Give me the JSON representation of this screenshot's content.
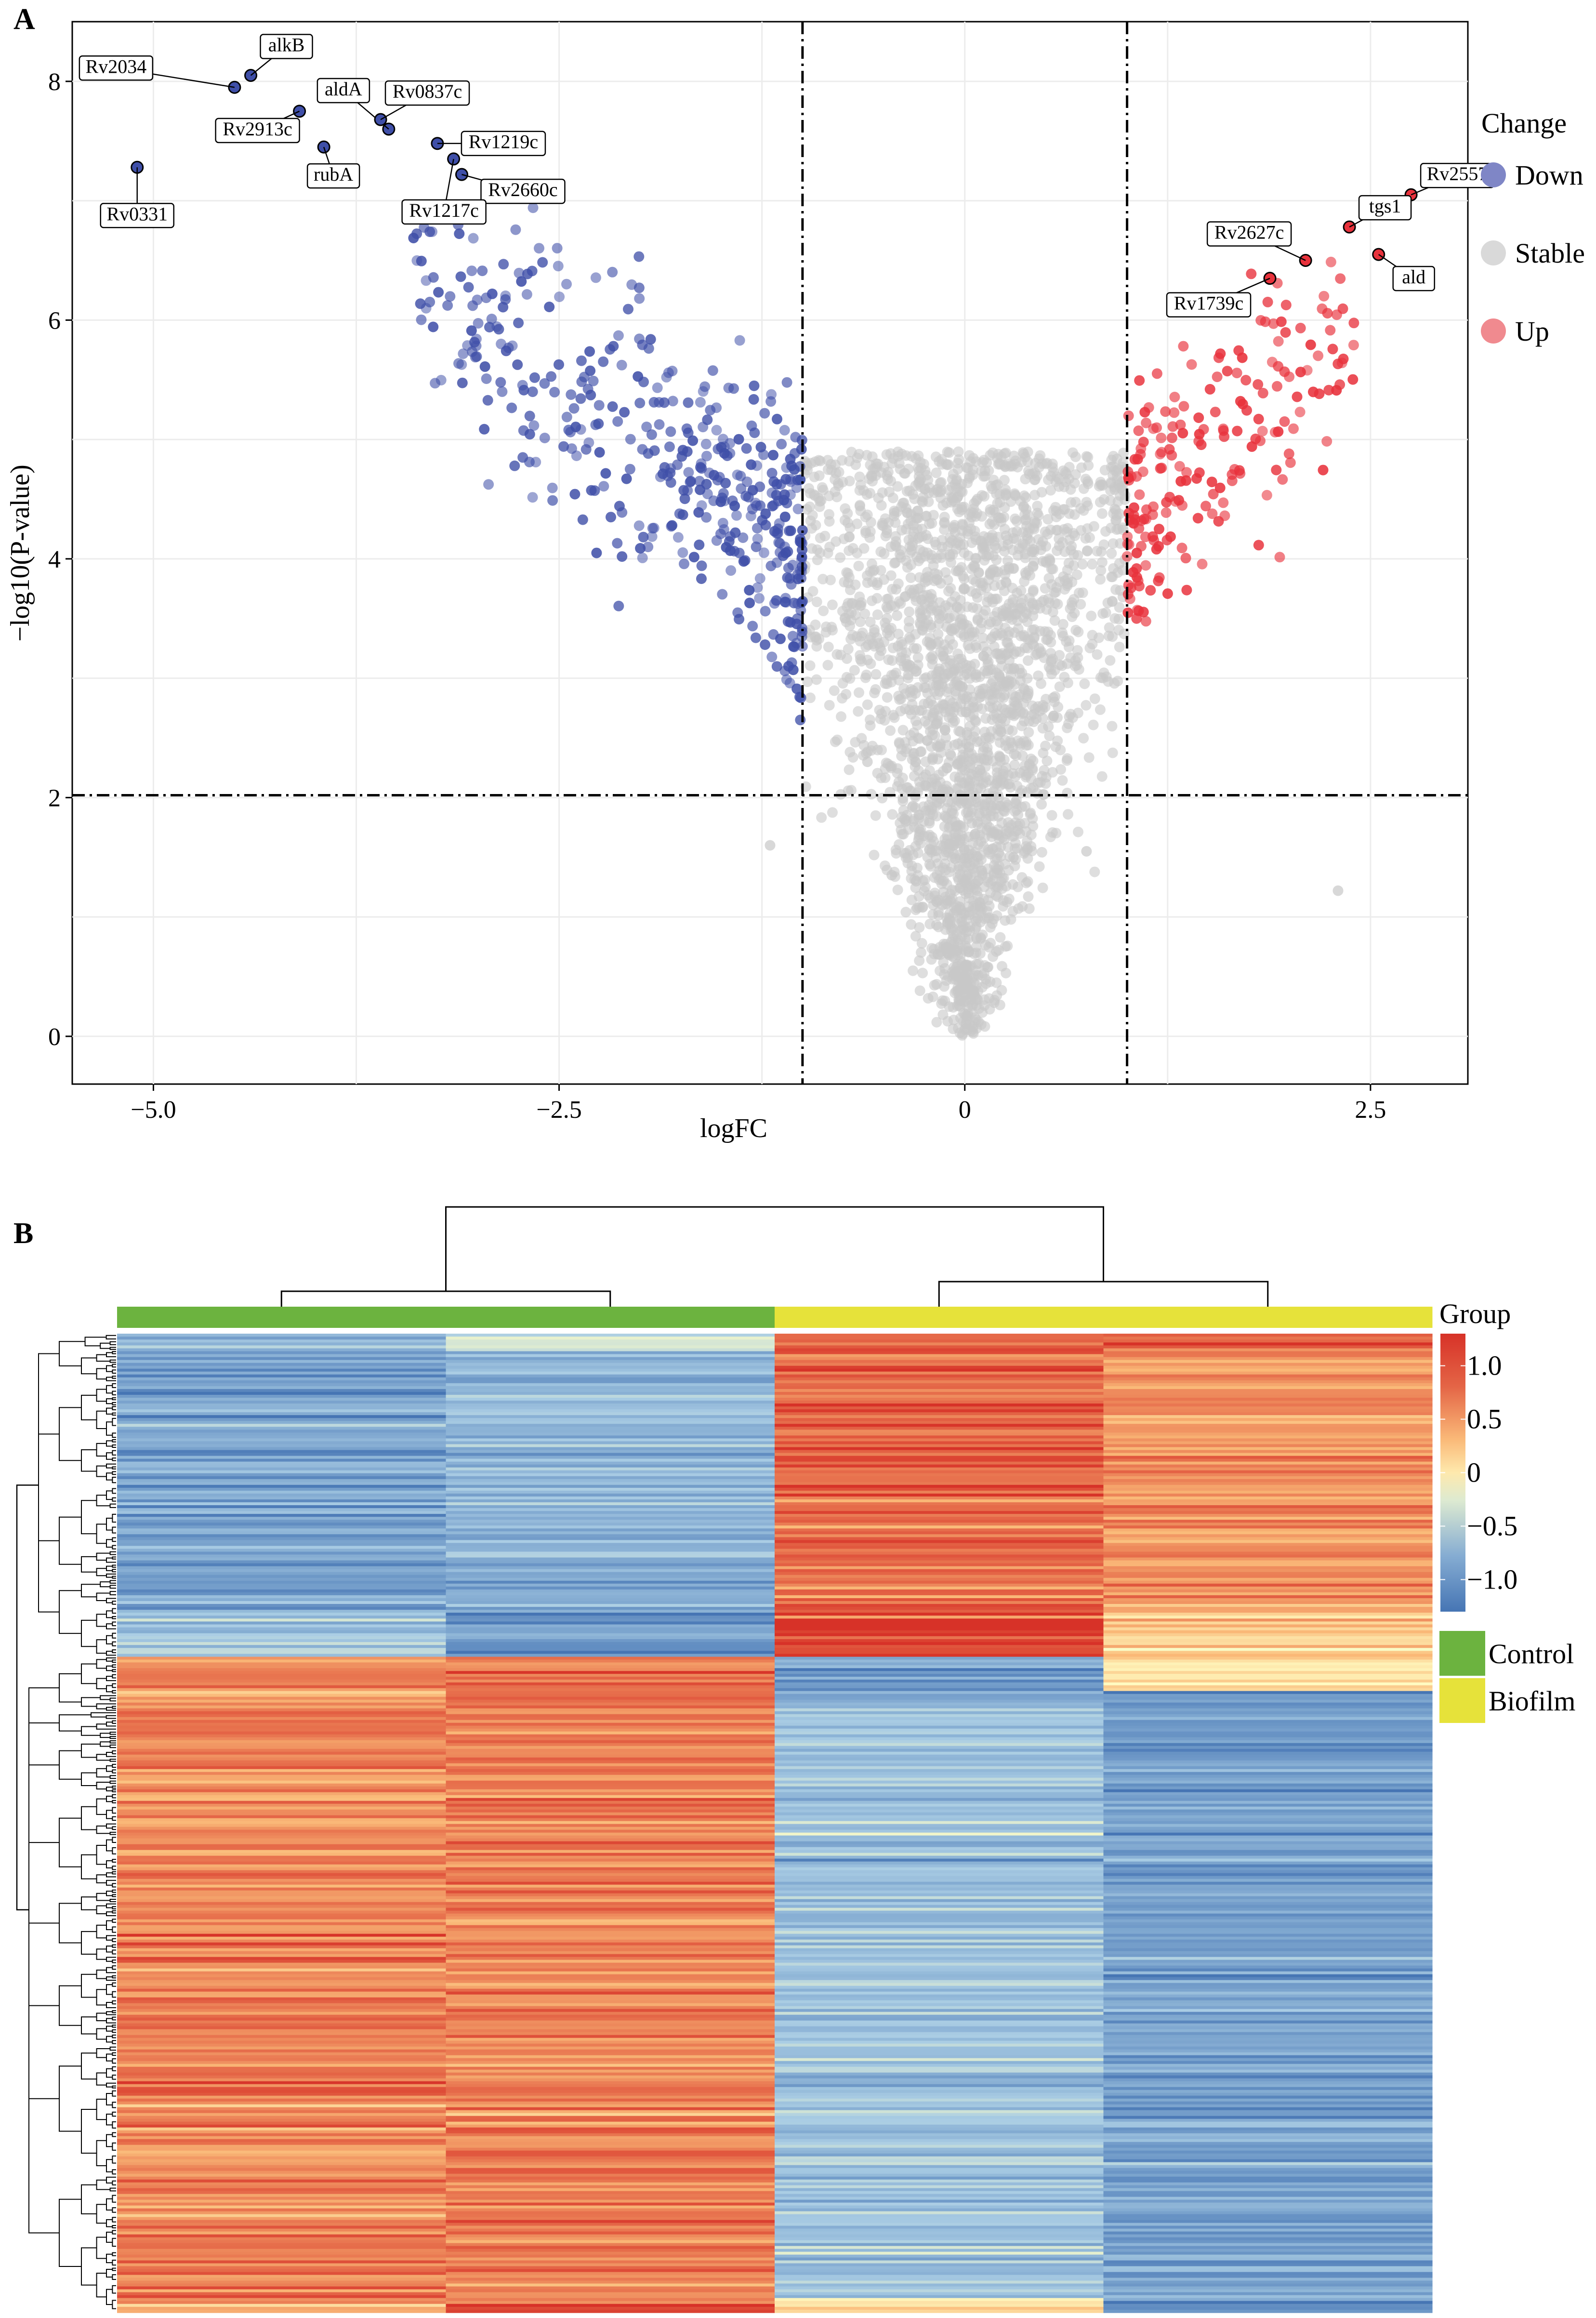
{
  "panels": {
    "a": "A",
    "b": "B"
  },
  "chart_data": [
    {
      "type": "scatter",
      "xlabel": "logFC",
      "ylabel": "−log10(P-value)",
      "xlim": [
        -5.5,
        3.1
      ],
      "ylim": [
        -0.4,
        8.5
      ],
      "x_ticks": [
        -5.0,
        -2.5,
        0,
        2.5
      ],
      "x_tick_labels": [
        "−5.0",
        "−2.5",
        "0",
        "2.5"
      ],
      "y_ticks": [
        0,
        2,
        4,
        6,
        8
      ],
      "y_tick_labels": [
        "0",
        "2",
        "4",
        "6",
        "8"
      ],
      "grid": true,
      "thresholds": {
        "logFC": [
          -1,
          1
        ],
        "neg_log10_p": 2.02
      },
      "legend": {
        "title": "Change",
        "placement": "right",
        "entries": [
          {
            "label": "Down",
            "color": "#7f86c6"
          },
          {
            "label": "Stable",
            "color": "#d9d9d9"
          },
          {
            "label": "Up",
            "color": "#f08a8f"
          }
        ]
      },
      "colors": {
        "down": "#3f4fa8",
        "stable": "#c8c8c8",
        "up": "#e8323c"
      },
      "labeled_genes": [
        {
          "label": "Rv2034",
          "x": -4.5,
          "y": 7.95,
          "group": "down"
        },
        {
          "label": "alkB",
          "x": -4.4,
          "y": 8.05,
          "group": "down"
        },
        {
          "label": "Rv2913c",
          "x": -4.1,
          "y": 7.75,
          "group": "down"
        },
        {
          "label": "aldA",
          "x": -3.55,
          "y": 7.6,
          "group": "down"
        },
        {
          "label": "Rv0837c",
          "x": -3.6,
          "y": 7.68,
          "group": "down"
        },
        {
          "label": "Rv1219c",
          "x": -3.25,
          "y": 7.48,
          "group": "down"
        },
        {
          "label": "rubA",
          "x": -3.95,
          "y": 7.45,
          "group": "down"
        },
        {
          "label": "Rv2660c",
          "x": -3.1,
          "y": 7.22,
          "group": "down"
        },
        {
          "label": "Rv1217c",
          "x": -3.15,
          "y": 7.35,
          "group": "down"
        },
        {
          "label": "Rv0331",
          "x": -5.1,
          "y": 7.28,
          "group": "down"
        },
        {
          "label": "Rv2557",
          "x": 2.75,
          "y": 7.05,
          "group": "up"
        },
        {
          "label": "tgs1",
          "x": 2.37,
          "y": 6.78,
          "group": "up"
        },
        {
          "label": "ald",
          "x": 2.55,
          "y": 6.55,
          "group": "up"
        },
        {
          "label": "Rv2627c",
          "x": 2.1,
          "y": 6.5,
          "group": "up"
        },
        {
          "label": "Rv1739c",
          "x": 1.88,
          "y": 6.35,
          "group": "up"
        }
      ],
      "note_points": "remaining points generated procedurally to depict the volcano shape"
    },
    {
      "type": "heatmap",
      "columns": 4,
      "column_groups": [
        "Control",
        "Control",
        "Biofilm",
        "Biofilm"
      ],
      "legend_title": "Group",
      "colorbar_ticks": [
        1.0,
        0.5,
        0,
        -0.5,
        -1.0
      ],
      "colorbar_labels": [
        "1.0",
        "0.5",
        "0",
        "−0.5",
        "−1.0"
      ],
      "group_colors": {
        "Control": "#6cb33f",
        "Biofilm": "#e6e23a"
      },
      "group_labels": [
        "Control",
        "Biofilm"
      ],
      "block_pattern": [
        {
          "frac": 0.015,
          "values": [
            -0.6,
            -0.3,
            1.0,
            1.1
          ]
        },
        {
          "frac": 0.27,
          "values": [
            -0.9,
            -0.75,
            0.95,
            0.7
          ]
        },
        {
          "frac": 0.045,
          "values": [
            -0.5,
            -1.0,
            1.2,
            0.4
          ]
        },
        {
          "frac": 0.035,
          "values": [
            0.8,
            0.9,
            -1.0,
            0.2
          ]
        },
        {
          "frac": 0.62,
          "values": [
            0.8,
            0.85,
            -0.6,
            -0.9
          ]
        },
        {
          "frac": 0.015,
          "values": [
            0.6,
            0.9,
            0.1,
            -1.0
          ]
        }
      ]
    }
  ]
}
